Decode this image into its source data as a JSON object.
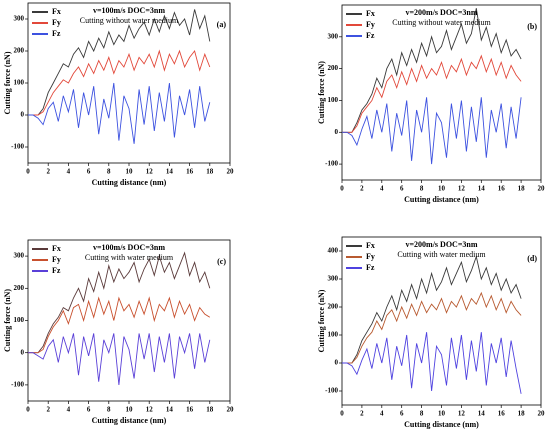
{
  "chart_data": [
    {
      "type": "line",
      "title": "v=100m/s DOC=3nm",
      "subtitle": "Cutting without water medium",
      "panel_label": "(a)",
      "xlabel": "Cutting distance (nm)",
      "ylabel": "Cutting force (nN)",
      "xlim": [
        0,
        20
      ],
      "xticks": [
        0,
        2,
        4,
        6,
        8,
        10,
        12,
        14,
        16,
        18,
        20
      ],
      "ylim": [
        -150,
        350
      ],
      "yticks": [
        -100,
        0,
        100,
        200,
        300
      ],
      "x": [
        0,
        0.5,
        1,
        1.5,
        2,
        2.5,
        3,
        3.5,
        4,
        4.5,
        5,
        5.5,
        6,
        6.5,
        7,
        7.5,
        8,
        8.5,
        9,
        9.5,
        10,
        10.5,
        11,
        11.5,
        12,
        12.5,
        13,
        13.5,
        14,
        14.5,
        15,
        15.5,
        16,
        16.5,
        17,
        17.5,
        18
      ],
      "series": [
        {
          "name": "Fx",
          "color": "#3a3a3a",
          "values": [
            0,
            0,
            0,
            20,
            70,
            100,
            130,
            160,
            150,
            190,
            210,
            180,
            230,
            200,
            240,
            210,
            260,
            220,
            250,
            230,
            280,
            240,
            270,
            290,
            250,
            300,
            260,
            310,
            270,
            320,
            280,
            300,
            250,
            330,
            270,
            310,
            230
          ]
        },
        {
          "name": "Fy",
          "color": "#e2483a",
          "values": [
            0,
            0,
            0,
            10,
            40,
            70,
            90,
            110,
            100,
            130,
            150,
            120,
            160,
            130,
            170,
            140,
            180,
            130,
            170,
            150,
            190,
            140,
            180,
            160,
            190,
            150,
            200,
            140,
            190,
            160,
            200,
            150,
            180,
            200,
            140,
            190,
            150
          ]
        },
        {
          "name": "Fz",
          "color": "#3d52e0",
          "values": [
            0,
            0,
            -10,
            -30,
            20,
            40,
            -20,
            60,
            10,
            80,
            -40,
            70,
            0,
            90,
            -60,
            50,
            -10,
            100,
            -80,
            60,
            20,
            -90,
            80,
            -30,
            90,
            -50,
            70,
            -20,
            100,
            -70,
            60,
            0,
            80,
            -40,
            90,
            -20,
            40
          ]
        }
      ]
    },
    {
      "type": "line",
      "title": "v=200m/s DOC=3nm",
      "subtitle": "Cutting without water medium",
      "panel_label": "(b)",
      "xlabel": "Cutting distance (nm)",
      "ylabel": "Cutting force (nN)",
      "xlim": [
        0,
        20
      ],
      "xticks": [
        0,
        2,
        4,
        6,
        8,
        10,
        12,
        14,
        16,
        18,
        20
      ],
      "ylim": [
        -150,
        400
      ],
      "yticks": [
        -100,
        0,
        100,
        200,
        300
      ],
      "x": [
        0,
        0.5,
        1,
        1.5,
        2,
        2.5,
        3,
        3.5,
        4,
        4.5,
        5,
        5.5,
        6,
        6.5,
        7,
        7.5,
        8,
        8.5,
        9,
        9.5,
        10,
        10.5,
        11,
        11.5,
        12,
        12.5,
        13,
        13.5,
        14,
        14.5,
        15,
        15.5,
        16,
        16.5,
        17,
        17.5,
        18
      ],
      "series": [
        {
          "name": "Fx",
          "color": "#3a3a3a",
          "values": [
            0,
            0,
            0,
            30,
            70,
            90,
            120,
            170,
            140,
            200,
            230,
            180,
            250,
            210,
            260,
            220,
            280,
            240,
            300,
            250,
            270,
            320,
            260,
            300,
            340,
            280,
            310,
            390,
            290,
            330,
            270,
            310,
            250,
            290,
            240,
            260,
            230
          ]
        },
        {
          "name": "Fy",
          "color": "#e2483a",
          "values": [
            0,
            0,
            0,
            20,
            60,
            80,
            100,
            140,
            110,
            160,
            180,
            140,
            190,
            150,
            200,
            160,
            210,
            170,
            200,
            180,
            220,
            170,
            210,
            190,
            230,
            180,
            220,
            200,
            240,
            190,
            230,
            180,
            220,
            170,
            210,
            180,
            160
          ]
        },
        {
          "name": "Fz",
          "color": "#3d52e0",
          "values": [
            0,
            0,
            -10,
            -40,
            10,
            50,
            -20,
            70,
            0,
            90,
            -60,
            60,
            -10,
            100,
            -90,
            70,
            0,
            110,
            -100,
            60,
            30,
            -80,
            90,
            -20,
            100,
            -60,
            80,
            -30,
            110,
            -80,
            70,
            0,
            90,
            -50,
            80,
            -20,
            110
          ]
        }
      ]
    },
    {
      "type": "line",
      "title": "v=100m/s DOC=3nm",
      "subtitle": "Cutting with water medium",
      "panel_label": "(c)",
      "xlabel": "Cutting distance (nm)",
      "ylabel": "Cutting force (nN)",
      "xlim": [
        0,
        20
      ],
      "xticks": [
        0,
        2,
        4,
        6,
        8,
        10,
        12,
        14,
        16,
        18,
        20
      ],
      "ylim": [
        -150,
        350
      ],
      "yticks": [
        -100,
        0,
        100,
        200,
        300
      ],
      "x": [
        0,
        0.5,
        1,
        1.5,
        2,
        2.5,
        3,
        3.5,
        4,
        4.5,
        5,
        5.5,
        6,
        6.5,
        7,
        7.5,
        8,
        8.5,
        9,
        9.5,
        10,
        10.5,
        11,
        11.5,
        12,
        12.5,
        13,
        13.5,
        14,
        14.5,
        15,
        15.5,
        16,
        16.5,
        17,
        17.5,
        18
      ],
      "series": [
        {
          "name": "Fx",
          "color": "#5a3a3a",
          "values": [
            0,
            0,
            0,
            20,
            60,
            90,
            110,
            140,
            130,
            170,
            200,
            160,
            230,
            190,
            250,
            200,
            270,
            220,
            260,
            230,
            250,
            280,
            220,
            260,
            290,
            240,
            300,
            250,
            280,
            230,
            270,
            310,
            240,
            280,
            220,
            250,
            200
          ]
        },
        {
          "name": "Fy",
          "color": "#c8502e",
          "values": [
            0,
            0,
            0,
            10,
            50,
            80,
            100,
            130,
            90,
            140,
            150,
            100,
            160,
            110,
            170,
            120,
            160,
            100,
            170,
            130,
            150,
            110,
            160,
            120,
            170,
            100,
            150,
            130,
            170,
            110,
            160,
            120,
            150,
            100,
            140,
            120,
            110
          ]
        },
        {
          "name": "Fz",
          "color": "#5a40d8",
          "values": [
            0,
            0,
            -10,
            -20,
            20,
            40,
            -30,
            50,
            0,
            60,
            -70,
            50,
            -10,
            60,
            -90,
            40,
            0,
            60,
            -100,
            50,
            10,
            -80,
            60,
            -20,
            60,
            -60,
            50,
            -30,
            60,
            -80,
            50,
            0,
            60,
            -50,
            60,
            -30,
            40
          ]
        }
      ]
    },
    {
      "type": "line",
      "title": "v=200m/s DOC=3nm",
      "subtitle": "Cutting with water medium",
      "panel_label": "(d)",
      "xlabel": "Cutting distance (nm)",
      "ylabel": "Cutting force (nN)",
      "xlim": [
        0,
        20
      ],
      "xticks": [
        0,
        2,
        4,
        6,
        8,
        10,
        12,
        14,
        16,
        18,
        20
      ],
      "ylim": [
        -150,
        450
      ],
      "yticks": [
        -100,
        0,
        100,
        200,
        300,
        400
      ],
      "x": [
        0,
        0.5,
        1,
        1.5,
        2,
        2.5,
        3,
        3.5,
        4,
        4.5,
        5,
        5.5,
        6,
        6.5,
        7,
        7.5,
        8,
        8.5,
        9,
        9.5,
        10,
        10.5,
        11,
        11.5,
        12,
        12.5,
        13,
        13.5,
        14,
        14.5,
        15,
        15.5,
        16,
        16.5,
        17,
        17.5,
        18
      ],
      "series": [
        {
          "name": "Fx",
          "color": "#3a3a3a",
          "values": [
            0,
            0,
            0,
            30,
            80,
            110,
            140,
            180,
            150,
            200,
            240,
            190,
            260,
            220,
            280,
            230,
            300,
            250,
            320,
            260,
            290,
            340,
            280,
            320,
            360,
            290,
            330,
            380,
            300,
            340,
            280,
            320,
            260,
            300,
            250,
            280,
            230
          ]
        },
        {
          "name": "Fy",
          "color": "#b85a30",
          "values": [
            0,
            0,
            0,
            20,
            60,
            90,
            110,
            150,
            120,
            170,
            190,
            150,
            200,
            160,
            210,
            170,
            220,
            180,
            210,
            190,
            230,
            180,
            220,
            200,
            240,
            190,
            230,
            210,
            250,
            200,
            240,
            190,
            230,
            180,
            220,
            190,
            170
          ]
        },
        {
          "name": "Fz",
          "color": "#4f42e0",
          "values": [
            0,
            0,
            -10,
            -40,
            10,
            50,
            -20,
            70,
            0,
            90,
            -60,
            60,
            -10,
            100,
            -90,
            70,
            0,
            110,
            -100,
            60,
            30,
            -80,
            90,
            -20,
            100,
            -60,
            80,
            -30,
            110,
            -80,
            70,
            0,
            90,
            -50,
            80,
            -20,
            -110
          ]
        }
      ]
    }
  ]
}
